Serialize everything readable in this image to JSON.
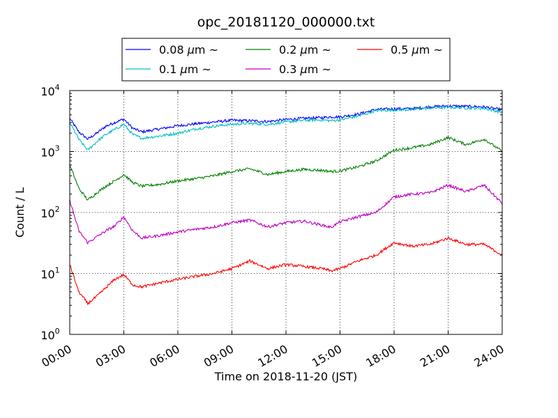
{
  "chart_data": {
    "type": "line",
    "title": "opc_20181120_000000.txt",
    "xlabel": "Time on 2018-11-20 (JST)",
    "ylabel": "Count / L",
    "x_ticks": [
      "00:00",
      "03:00",
      "06:00",
      "09:00",
      "12:00",
      "15:00",
      "18:00",
      "21:00",
      "24:00"
    ],
    "x_unit": "hours",
    "xlim": [
      0,
      24
    ],
    "y_scale": "log",
    "ylim": [
      1,
      10000
    ],
    "y_ticks": [
      {
        "base": "10",
        "exp": "0"
      },
      {
        "base": "10",
        "exp": "1"
      },
      {
        "base": "10",
        "exp": "2"
      },
      {
        "base": "10",
        "exp": "3"
      },
      {
        "base": "10",
        "exp": "4"
      }
    ],
    "grid": true,
    "legend_position": "top-center",
    "x": [
      0,
      0.5,
      1,
      1.5,
      2,
      2.5,
      3,
      3.5,
      4,
      5,
      6,
      7,
      8,
      9,
      10,
      11,
      12,
      13,
      14,
      14.5,
      15,
      16,
      17,
      18,
      19,
      20,
      21,
      22,
      23,
      24
    ],
    "series": [
      {
        "name": "0.08 μm ~",
        "label_text": "0.08",
        "color": "#0000ff",
        "values": [
          3500,
          2100,
          1600,
          2000,
          2600,
          3000,
          3400,
          2400,
          2100,
          2350,
          2650,
          2850,
          3050,
          3250,
          3200,
          3100,
          3350,
          3500,
          3600,
          3700,
          3700,
          4100,
          4900,
          5000,
          5050,
          5400,
          5600,
          5500,
          5400,
          4800
        ]
      },
      {
        "name": "0.1 μm ~",
        "label_text": "0.1",
        "color": "#00bfbf",
        "values": [
          3000,
          1600,
          1050,
          1450,
          1900,
          2300,
          2800,
          1900,
          1650,
          1800,
          2000,
          2350,
          2600,
          2800,
          2900,
          2800,
          3050,
          3250,
          3300,
          3200,
          3300,
          3800,
          4700,
          4800,
          4900,
          5200,
          5300,
          5200,
          5100,
          4400
        ]
      },
      {
        "name": "0.2 μm ~",
        "label_text": "0.2",
        "color": "#008000",
        "values": [
          600,
          250,
          160,
          210,
          270,
          330,
          420,
          310,
          270,
          290,
          330,
          360,
          400,
          470,
          520,
          420,
          470,
          510,
          490,
          470,
          480,
          560,
          700,
          1050,
          1150,
          1300,
          1700,
          1300,
          1600,
          1000
        ]
      },
      {
        "name": "0.3 μm ~",
        "label_text": "0.3",
        "color": "#bf00bf",
        "values": [
          160,
          50,
          32,
          40,
          50,
          60,
          85,
          50,
          38,
          42,
          48,
          53,
          58,
          68,
          75,
          58,
          68,
          72,
          62,
          57,
          70,
          85,
          100,
          180,
          200,
          210,
          280,
          220,
          280,
          140
        ]
      },
      {
        "name": "0.5 μm ~",
        "label_text": "0.5",
        "color": "#ff0000",
        "values": [
          14,
          5,
          3.2,
          4.2,
          5.8,
          8,
          9.5,
          6.5,
          6,
          7,
          8,
          9,
          10,
          12,
          16,
          12,
          14,
          13,
          12,
          11,
          12,
          16,
          20,
          32,
          28,
          30,
          38,
          30,
          30,
          20
        ]
      }
    ]
  }
}
